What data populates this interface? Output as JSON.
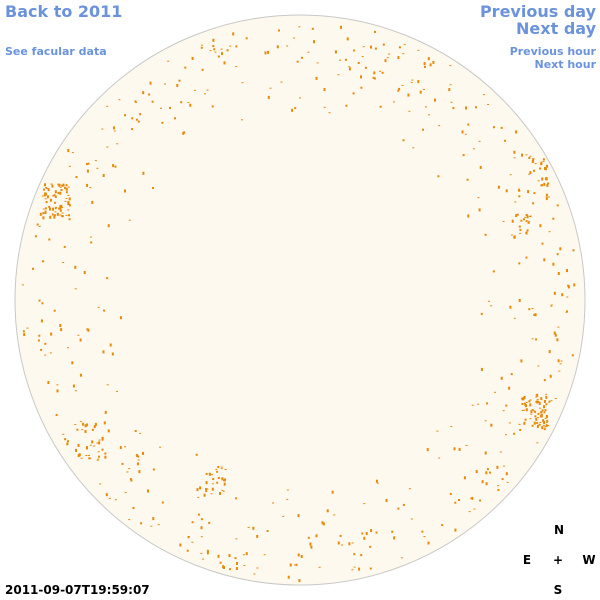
{
  "nav": {
    "back": "Back to 2011",
    "facular": "See facular data",
    "previous_day": "Previous day",
    "next_day": "Next day",
    "previous_hour": "Previous hour",
    "next_hour": "Next hour"
  },
  "timestamp": "2011-09-07T19:59:07",
  "compass": {
    "north": "N",
    "east": "E",
    "center": "+",
    "west": "W",
    "south": "S"
  }
}
